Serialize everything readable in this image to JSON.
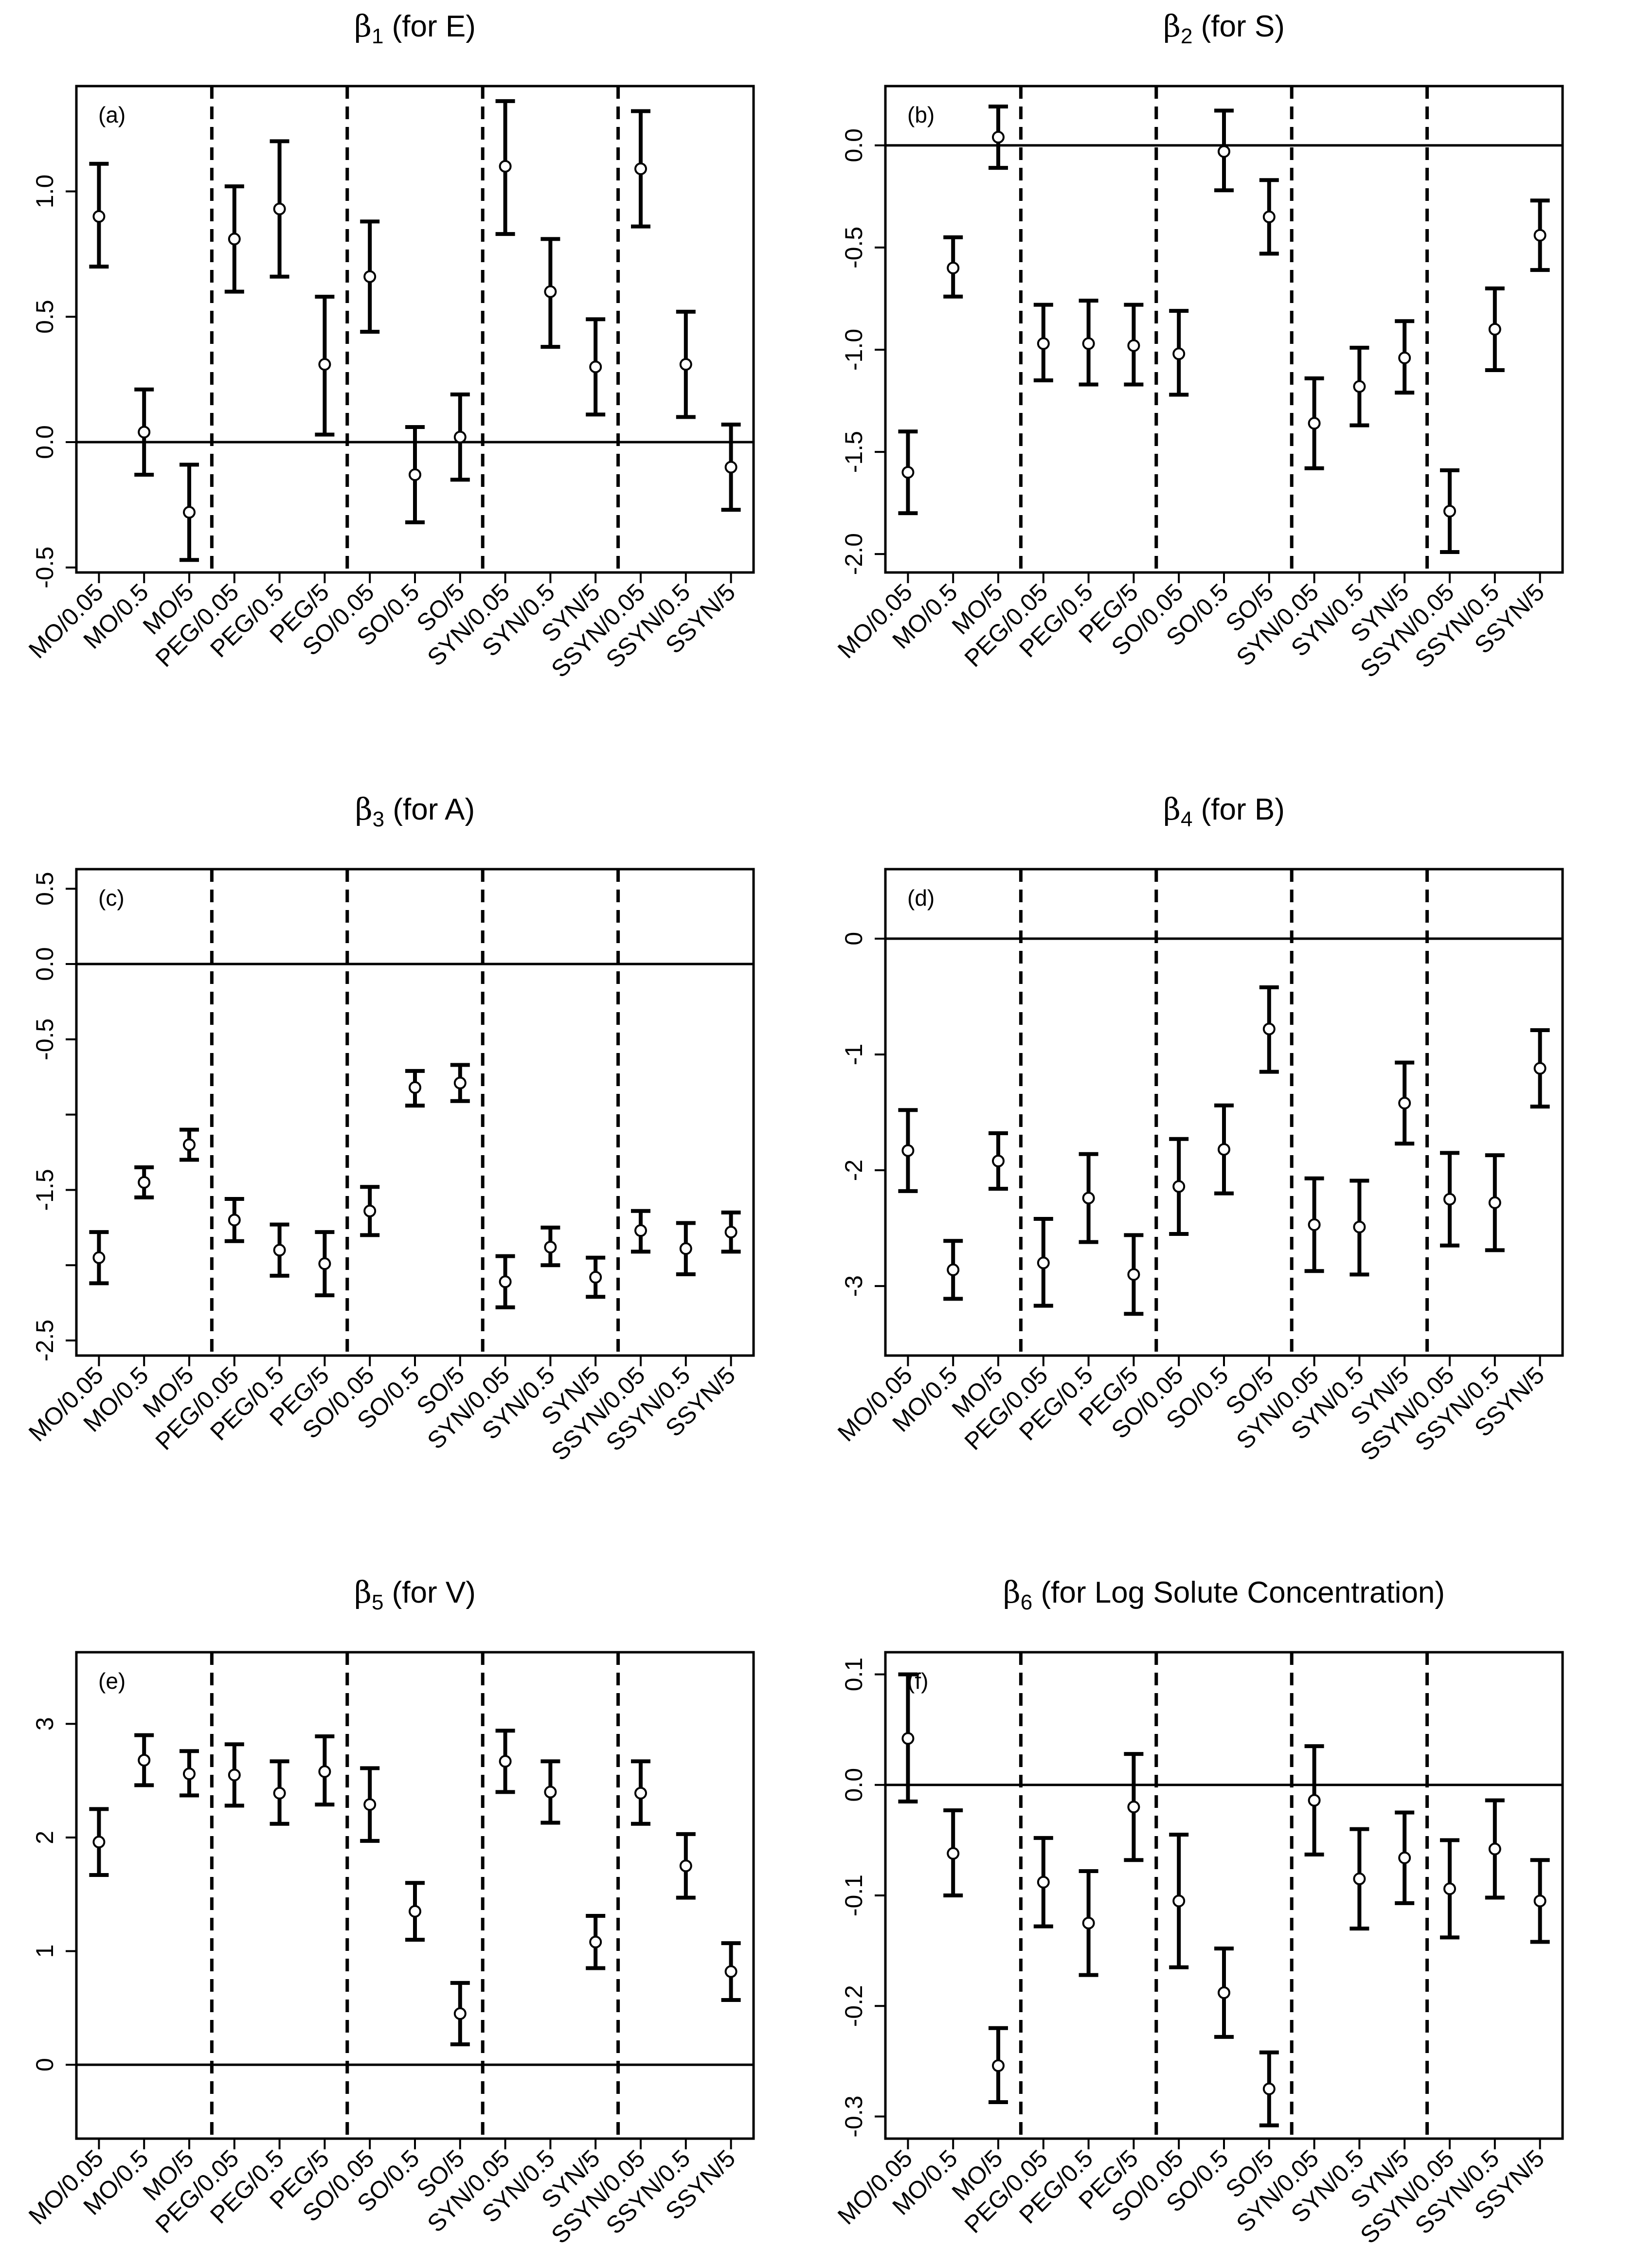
{
  "figure": {
    "description_title": "Coefficient estimates with confidence intervals for six descriptors across fifteen conditions"
  },
  "chart_data": [
    {
      "type": "errorbar",
      "panel": "(a)",
      "title": {
        "symbol": "β",
        "sub": "1",
        "text": " (for E)"
      },
      "categories": [
        "MO/0.05",
        "MO/0.5",
        "MO/5",
        "PEG/0.05",
        "PEG/0.5",
        "PEG/5",
        "SO/0.05",
        "SO/0.5",
        "SO/5",
        "SYN/0.05",
        "SYN/0.5",
        "SYN/5",
        "SSYN/0.05",
        "SSYN/0.5",
        "SSYN/5"
      ],
      "values": [
        0.9,
        0.04,
        -0.28,
        0.81,
        0.93,
        0.31,
        0.66,
        -0.13,
        0.02,
        1.1,
        0.6,
        0.3,
        1.09,
        0.31,
        -0.1
      ],
      "lower": [
        0.7,
        -0.13,
        -0.47,
        0.6,
        0.66,
        0.03,
        0.44,
        -0.32,
        -0.15,
        0.83,
        0.38,
        0.11,
        0.86,
        0.1,
        -0.27
      ],
      "upper": [
        1.11,
        0.21,
        -0.09,
        1.02,
        1.2,
        0.58,
        0.88,
        0.06,
        0.19,
        1.36,
        0.81,
        0.49,
        1.32,
        0.52,
        0.07
      ],
      "yticks": [
        "-0.5",
        "0.0",
        "0.5",
        "1.0"
      ],
      "yticks_values": [
        -0.5,
        0.0,
        0.5,
        1.0
      ],
      "ylim": [
        -0.52,
        1.42
      ],
      "reference_line": 0,
      "group_separators_after": [
        3,
        6,
        9,
        12
      ]
    },
    {
      "type": "errorbar",
      "panel": "(b)",
      "title": {
        "symbol": "β",
        "sub": "2",
        "text": " (for S)"
      },
      "categories": [
        "MO/0.05",
        "MO/0.5",
        "MO/5",
        "PEG/0.05",
        "PEG/0.5",
        "PEG/5",
        "SO/0.05",
        "SO/0.5",
        "SO/5",
        "SYN/0.05",
        "SYN/0.5",
        "SYN/5",
        "SSYN/0.05",
        "SSYN/0.5",
        "SSYN/5"
      ],
      "values": [
        -1.6,
        -0.6,
        0.04,
        -0.97,
        -0.97,
        -0.98,
        -1.02,
        -0.03,
        -0.35,
        -1.36,
        -1.18,
        -1.04,
        -1.79,
        -0.9,
        -0.44
      ],
      "lower": [
        -1.8,
        -0.74,
        -0.11,
        -1.15,
        -1.17,
        -1.17,
        -1.22,
        -0.22,
        -0.53,
        -1.58,
        -1.37,
        -1.21,
        -1.99,
        -1.1,
        -0.61
      ],
      "upper": [
        -1.4,
        -0.45,
        0.19,
        -0.78,
        -0.76,
        -0.78,
        -0.81,
        0.17,
        -0.17,
        -1.14,
        -0.99,
        -0.86,
        -1.59,
        -0.7,
        -0.27
      ],
      "yticks": [
        "-2.0",
        "-1.5",
        "-1.0",
        "-0.5",
        "0.0"
      ],
      "yticks_values": [
        -2.0,
        -1.5,
        -1.0,
        -0.5,
        0.0
      ],
      "ylim": [
        -2.09,
        0.29
      ],
      "reference_line": 0,
      "group_separators_after": [
        3,
        6,
        9,
        12
      ]
    },
    {
      "type": "errorbar",
      "panel": "(c)",
      "title": {
        "symbol": "β",
        "sub": "3",
        "text": " (for A)"
      },
      "categories": [
        "MO/0.05",
        "MO/0.5",
        "MO/5",
        "PEG/0.05",
        "PEG/0.5",
        "PEG/5",
        "SO/0.05",
        "SO/0.5",
        "SO/5",
        "SYN/0.05",
        "SYN/0.5",
        "SYN/5",
        "SSYN/0.05",
        "SSYN/0.5",
        "SSYN/5"
      ],
      "values": [
        -1.95,
        -1.45,
        -1.2,
        -1.7,
        -1.9,
        -1.99,
        -1.64,
        -0.82,
        -0.79,
        -2.11,
        -1.88,
        -2.08,
        -1.77,
        -1.89,
        -1.78
      ],
      "lower": [
        -2.12,
        -1.55,
        -1.3,
        -1.84,
        -2.07,
        -2.2,
        -1.8,
        -0.94,
        -0.91,
        -2.28,
        -2.0,
        -2.21,
        -1.91,
        -2.06,
        -1.91
      ],
      "upper": [
        -1.78,
        -1.35,
        -1.1,
        -1.56,
        -1.73,
        -1.78,
        -1.48,
        -0.71,
        -0.67,
        -1.94,
        -1.75,
        -1.95,
        -1.64,
        -1.72,
        -1.65
      ],
      "yticks": [
        "-2.5",
        "-1.5",
        "-0.5",
        "0.0",
        "0.5"
      ],
      "yticks_values": [
        -2.5,
        -1.5,
        -0.5,
        0.0,
        0.5
      ],
      "yticks_minor": [
        -2.0,
        -1.0
      ],
      "ylim": [
        -2.6,
        0.63
      ],
      "reference_line": 0,
      "group_separators_after": [
        3,
        6,
        9,
        12
      ]
    },
    {
      "type": "errorbar",
      "panel": "(d)",
      "title": {
        "symbol": "β",
        "sub": "4",
        "text": " (for B)"
      },
      "categories": [
        "MO/0.05",
        "MO/0.5",
        "MO/5",
        "PEG/0.05",
        "PEG/0.5",
        "PEG/5",
        "SO/0.05",
        "SO/0.5",
        "SO/5",
        "SYN/0.05",
        "SYN/0.5",
        "SYN/5",
        "SSYN/0.05",
        "SSYN/0.5",
        "SSYN/5"
      ],
      "values": [
        -1.83,
        -2.86,
        -1.92,
        -2.8,
        -2.24,
        -2.9,
        -2.14,
        -1.82,
        -0.78,
        -2.47,
        -2.49,
        -1.42,
        -2.25,
        -2.28,
        -1.12
      ],
      "lower": [
        -2.18,
        -3.11,
        -2.16,
        -3.17,
        -2.62,
        -3.24,
        -2.55,
        -2.2,
        -1.15,
        -2.87,
        -2.9,
        -1.77,
        -2.65,
        -2.69,
        -1.45
      ],
      "upper": [
        -1.48,
        -2.61,
        -1.68,
        -2.42,
        -1.86,
        -2.56,
        -1.73,
        -1.44,
        -0.42,
        -2.07,
        -2.09,
        -1.07,
        -1.85,
        -1.87,
        -0.79
      ],
      "yticks": [
        "-3",
        "-2",
        "-1",
        "0"
      ],
      "yticks_values": [
        -3,
        -2,
        -1,
        0
      ],
      "ylim": [
        -3.6,
        0.6
      ],
      "reference_line": 0,
      "group_separators_after": [
        3,
        6,
        9,
        12
      ]
    },
    {
      "type": "errorbar",
      "panel": "(e)",
      "title": {
        "symbol": "β",
        "sub": "5",
        "text": " (for V)"
      },
      "categories": [
        "MO/0.05",
        "MO/0.5",
        "MO/5",
        "PEG/0.05",
        "PEG/0.5",
        "PEG/5",
        "SO/0.05",
        "SO/0.5",
        "SO/5",
        "SYN/0.05",
        "SYN/0.5",
        "SYN/5",
        "SSYN/0.05",
        "SSYN/0.5",
        "SSYN/5"
      ],
      "values": [
        1.96,
        2.68,
        2.56,
        2.55,
        2.39,
        2.58,
        2.29,
        1.35,
        0.45,
        2.67,
        2.4,
        1.08,
        2.39,
        1.75,
        0.82
      ],
      "lower": [
        1.67,
        2.46,
        2.37,
        2.28,
        2.12,
        2.29,
        1.97,
        1.1,
        0.18,
        2.4,
        2.13,
        0.85,
        2.12,
        1.47,
        0.57
      ],
      "upper": [
        2.25,
        2.9,
        2.76,
        2.82,
        2.67,
        2.89,
        2.61,
        1.6,
        0.72,
        2.94,
        2.67,
        1.31,
        2.67,
        2.03,
        1.07
      ],
      "yticks": [
        "0",
        "1",
        "2",
        "3"
      ],
      "yticks_values": [
        0,
        1,
        2,
        3
      ],
      "ylim": [
        -0.65,
        3.63
      ],
      "reference_line": 0,
      "group_separators_after": [
        3,
        6,
        9,
        12
      ]
    },
    {
      "type": "errorbar",
      "panel": "(f)",
      "title": {
        "symbol": "β",
        "sub": "6",
        "text": " (for Log Solute Concentration)"
      },
      "categories": [
        "MO/0.05",
        "MO/0.5",
        "MO/5",
        "PEG/0.05",
        "PEG/0.5",
        "PEG/5",
        "SO/0.05",
        "SO/0.5",
        "SO/5",
        "SYN/0.05",
        "SYN/0.5",
        "SYN/5",
        "SSYN/0.05",
        "SSYN/0.5",
        "SSYN/5"
      ],
      "values": [
        0.042,
        -0.062,
        -0.254,
        -0.088,
        -0.125,
        -0.02,
        -0.105,
        -0.188,
        -0.275,
        -0.014,
        -0.085,
        -0.066,
        -0.094,
        -0.058,
        -0.105
      ],
      "lower": [
        -0.015,
        -0.1,
        -0.287,
        -0.128,
        -0.172,
        -0.068,
        -0.165,
        -0.228,
        -0.308,
        -0.063,
        -0.13,
        -0.107,
        -0.138,
        -0.102,
        -0.142
      ],
      "upper": [
        0.1,
        -0.023,
        -0.22,
        -0.048,
        -0.078,
        0.028,
        -0.045,
        -0.148,
        -0.242,
        0.035,
        -0.04,
        -0.025,
        -0.05,
        -0.014,
        -0.068
      ],
      "yticks": [
        "-0.3",
        "-0.2",
        "-0.1",
        "0.0",
        "0.1"
      ],
      "yticks_values": [
        -0.3,
        -0.2,
        -0.1,
        0.0,
        0.1
      ],
      "ylim": [
        -0.32,
        0.12
      ],
      "reference_line": 0,
      "group_separators_after": [
        3,
        6,
        9,
        12
      ]
    }
  ]
}
